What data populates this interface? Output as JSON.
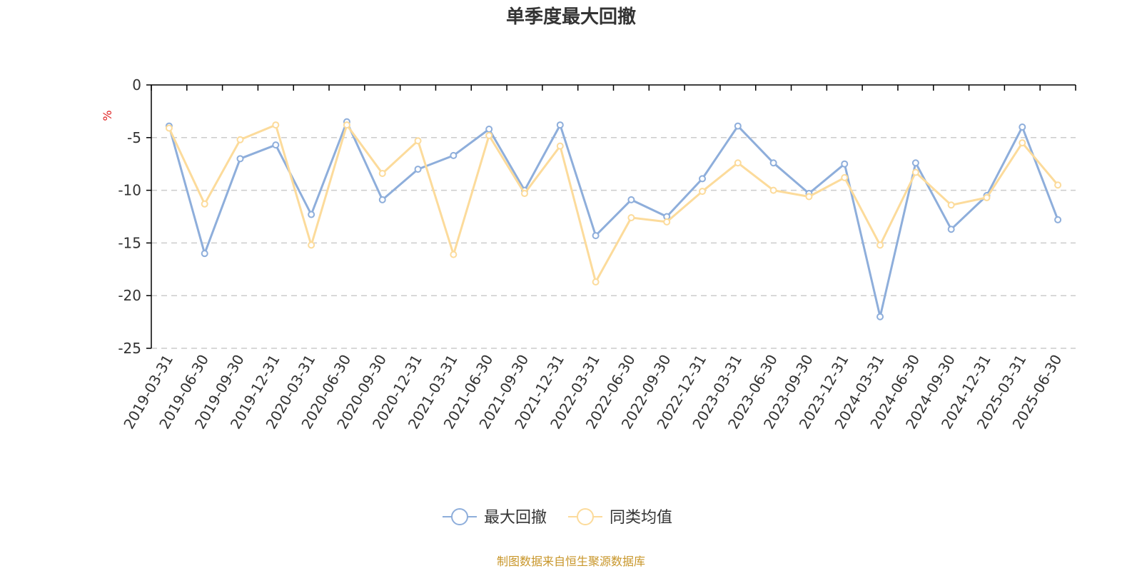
{
  "colors": {
    "series_0": "#8eaedb",
    "series_1": "#fcdb9b",
    "axis": "#000000",
    "grid": "#cccccc",
    "unit": "#e02020",
    "source": "#c8962a"
  },
  "chart_data": {
    "type": "line",
    "title": "单季度最大回撤",
    "ylabel": "%",
    "xlabel": "",
    "ylim": [
      -25,
      0
    ],
    "yticks": [
      0,
      -5,
      -10,
      -15,
      -20,
      -25
    ],
    "grid": true,
    "legend_position": "bottom-center",
    "categories": [
      "2019-03-31",
      "2019-06-30",
      "2019-09-30",
      "2019-12-31",
      "2020-03-31",
      "2020-06-30",
      "2020-09-30",
      "2020-12-31",
      "2021-03-31",
      "2021-06-30",
      "2021-09-30",
      "2021-12-31",
      "2022-03-31",
      "2022-06-30",
      "2022-09-30",
      "2022-12-31",
      "2023-03-31",
      "2023-06-30",
      "2023-09-30",
      "2023-12-31",
      "2024-03-31",
      "2024-06-30",
      "2024-09-30",
      "2024-12-31",
      "2025-03-31",
      "2025-06-30"
    ],
    "series": [
      {
        "name": "最大回撤",
        "values": [
          -3.9,
          -16.0,
          -7.0,
          -5.7,
          -12.3,
          -3.5,
          -10.9,
          -8.0,
          -6.7,
          -4.2,
          -10.0,
          -3.8,
          -14.3,
          -10.9,
          -12.5,
          -8.9,
          -3.9,
          -7.4,
          -10.3,
          -7.5,
          -22.0,
          -7.4,
          -13.7,
          -10.5,
          -4.0,
          -12.8
        ]
      },
      {
        "name": "同类均值",
        "values": [
          -4.1,
          -11.3,
          -5.2,
          -3.8,
          -15.2,
          -3.8,
          -8.4,
          -5.3,
          -16.1,
          -4.8,
          -10.3,
          -5.8,
          -18.7,
          -12.6,
          -13.0,
          -10.1,
          -7.4,
          -10.0,
          -10.6,
          -8.8,
          -15.2,
          -8.3,
          -11.4,
          -10.7,
          -5.5,
          -9.5
        ]
      }
    ]
  },
  "source_note": "制图数据来自恒生聚源数据库"
}
